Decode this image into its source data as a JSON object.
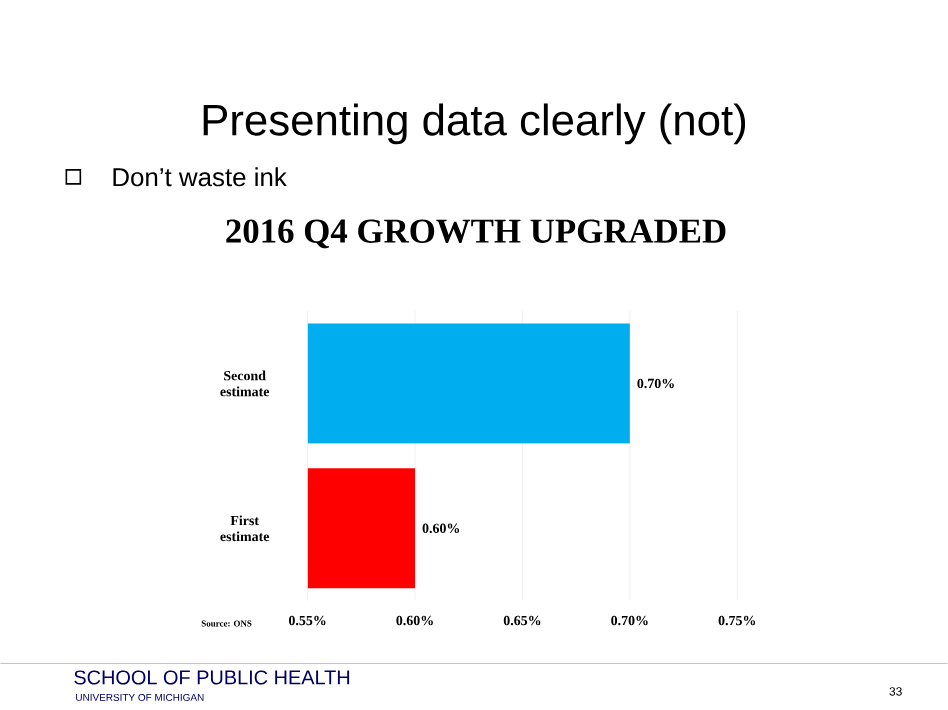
{
  "chart_data": {
    "type": "bar",
    "orientation": "horizontal",
    "title": "2016 Q4 GROWTH UPGRADED",
    "categories": [
      "Second estimate",
      "First estimate"
    ],
    "values": [
      0.7,
      0.6
    ],
    "colors": [
      "#00aeef",
      "#ff0000"
    ],
    "value_labels": [
      "0.70%",
      "0.60%"
    ],
    "xlim": [
      0.55,
      0.75
    ],
    "xticks": [
      {
        "value": 0.55,
        "label": "0.55%"
      },
      {
        "value": 0.6,
        "label": "0.60%"
      },
      {
        "value": 0.65,
        "label": "0.65%"
      },
      {
        "value": 0.7,
        "label": "0.70%"
      },
      {
        "value": 0.75,
        "label": "0.75%"
      }
    ],
    "grid": "x",
    "annotations": [
      "Presenting data clearly (not)",
      "Don’t waste ink",
      "Source: ONS",
      "SCHOOL OF PUBLIC HEALTH",
      "UNIVERSITY OF MICHIGAN",
      "33"
    ]
  }
}
